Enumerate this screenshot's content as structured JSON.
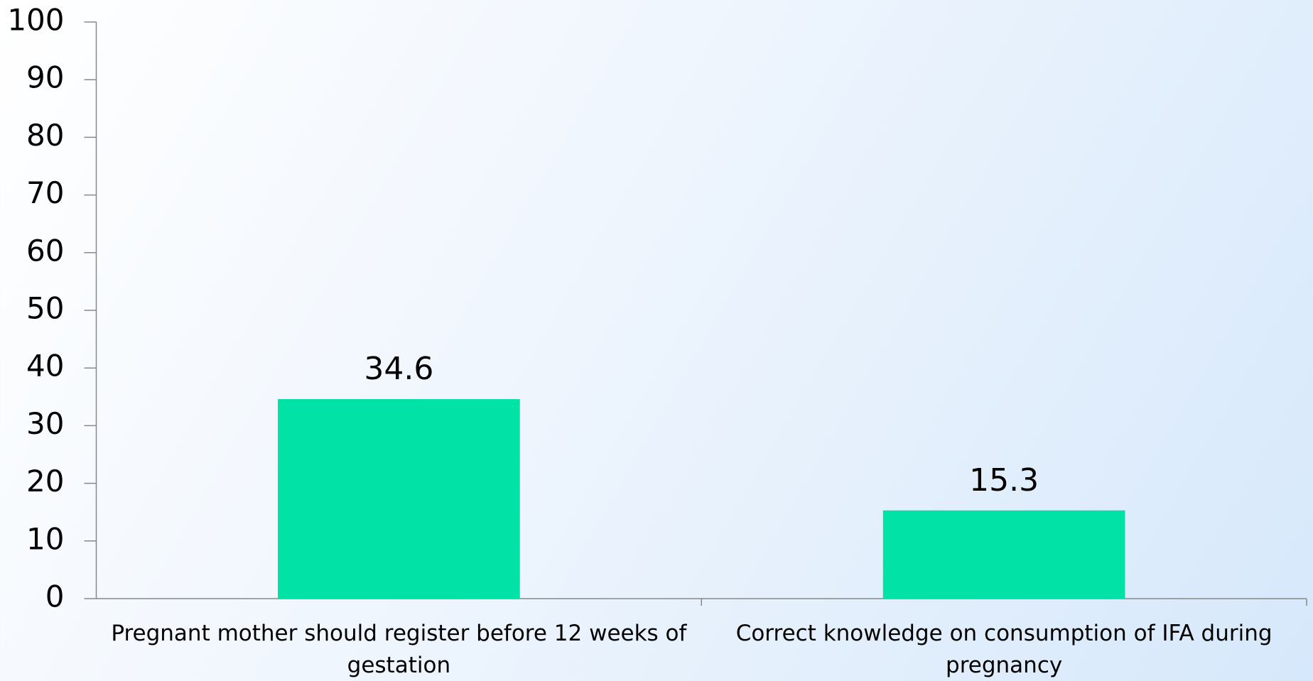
{
  "chart_data": {
    "type": "bar",
    "categories": [
      "Pregnant mother should register before 12 weeks of gestation",
      "Correct knowledge on consumption of IFA during pregnancy"
    ],
    "values": [
      34.6,
      15.3
    ],
    "color": "#00e2a6",
    "ylim": [
      0,
      100
    ],
    "yticks": [
      0,
      10,
      20,
      30,
      40,
      50,
      60,
      70,
      80,
      90,
      100
    ],
    "grid": false
  }
}
